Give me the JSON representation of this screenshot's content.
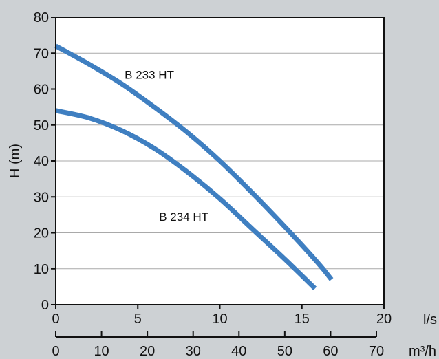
{
  "chart_data": {
    "type": "line",
    "title": "",
    "xlabel": "",
    "ylabel": "H (m)",
    "x_unit": "l/s",
    "x2_unit": "m³/h",
    "xlim": [
      0,
      20
    ],
    "ylim": [
      0,
      80
    ],
    "x2lim": [
      0,
      70
    ],
    "x_ticks": [
      "0",
      "5",
      "10",
      "15",
      "20"
    ],
    "x2_ticks": [
      "0",
      "10",
      "20",
      "30",
      "40",
      "50",
      "60",
      "70"
    ],
    "y_ticks": [
      "0",
      "10",
      "20",
      "30",
      "40",
      "50",
      "60",
      "70",
      "80"
    ],
    "grid": "horizontal",
    "colors": {
      "series": "#3f7fc1",
      "plot_bg": "#ffffff",
      "page_bg": "#cdd1d4",
      "grid": "#a9a9a9"
    },
    "series": [
      {
        "name": "B 233 HT",
        "x": [
          0,
          2,
          4,
          6,
          8,
          10,
          12,
          14,
          16,
          16.8
        ],
        "y": [
          72,
          67,
          61.5,
          55,
          48,
          40,
          31,
          21.5,
          11.5,
          7
        ]
      },
      {
        "name": "B 234 HT",
        "x": [
          0,
          2,
          4,
          6,
          8,
          10,
          12,
          14,
          15.8
        ],
        "y": [
          54,
          52,
          48.5,
          43.5,
          37,
          29.5,
          21,
          12.5,
          4.5
        ]
      }
    ]
  }
}
